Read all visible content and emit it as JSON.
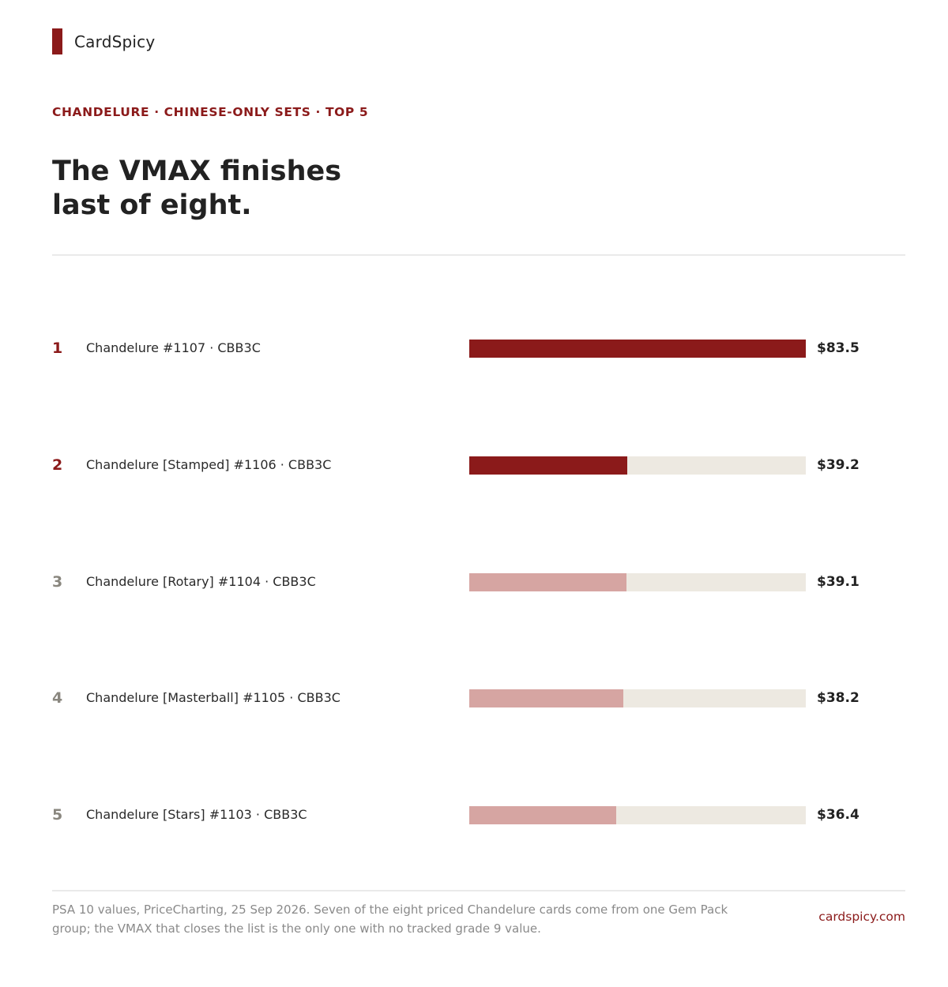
{
  "brand": {
    "name": "CardSpicy",
    "site": "cardspicy.com"
  },
  "kicker": "CHANDELURE · CHINESE-ONLY SETS · TOP 5",
  "headline": {
    "line1": "The VMAX finishes",
    "line2": "last of eight."
  },
  "footnote": "PSA 10 values, PriceCharting, 25 Sep 2026. Seven of the eight priced Chandelure cards come from one Gem Pack group; the VMAX that closes the list is the only one with no tracked grade 9 value.",
  "colors": {
    "accent": "#8b1a1a",
    "accent_light": "#d6a5a2",
    "rank_muted": "#8a877f",
    "track": "#ede9e1"
  },
  "chart_data": {
    "type": "bar",
    "orientation": "horizontal",
    "max_value": 83.5,
    "rows": [
      {
        "rank": "1",
        "label": "Chandelure #1107 · CBB3C",
        "value": 83.5,
        "display": "$83.5",
        "highlight": true
      },
      {
        "rank": "2",
        "label": "Chandelure [Stamped] #1106 · CBB3C",
        "value": 39.2,
        "display": "$39.2",
        "highlight": true
      },
      {
        "rank": "3",
        "label": "Chandelure [Rotary] #1104 · CBB3C",
        "value": 39.1,
        "display": "$39.1",
        "highlight": false
      },
      {
        "rank": "4",
        "label": "Chandelure [Masterball] #1105 · CBB3C",
        "value": 38.2,
        "display": "$38.2",
        "highlight": false
      },
      {
        "rank": "5",
        "label": "Chandelure [Stars] #1103 · CBB3C",
        "value": 36.4,
        "display": "$36.4",
        "highlight": false
      }
    ]
  }
}
